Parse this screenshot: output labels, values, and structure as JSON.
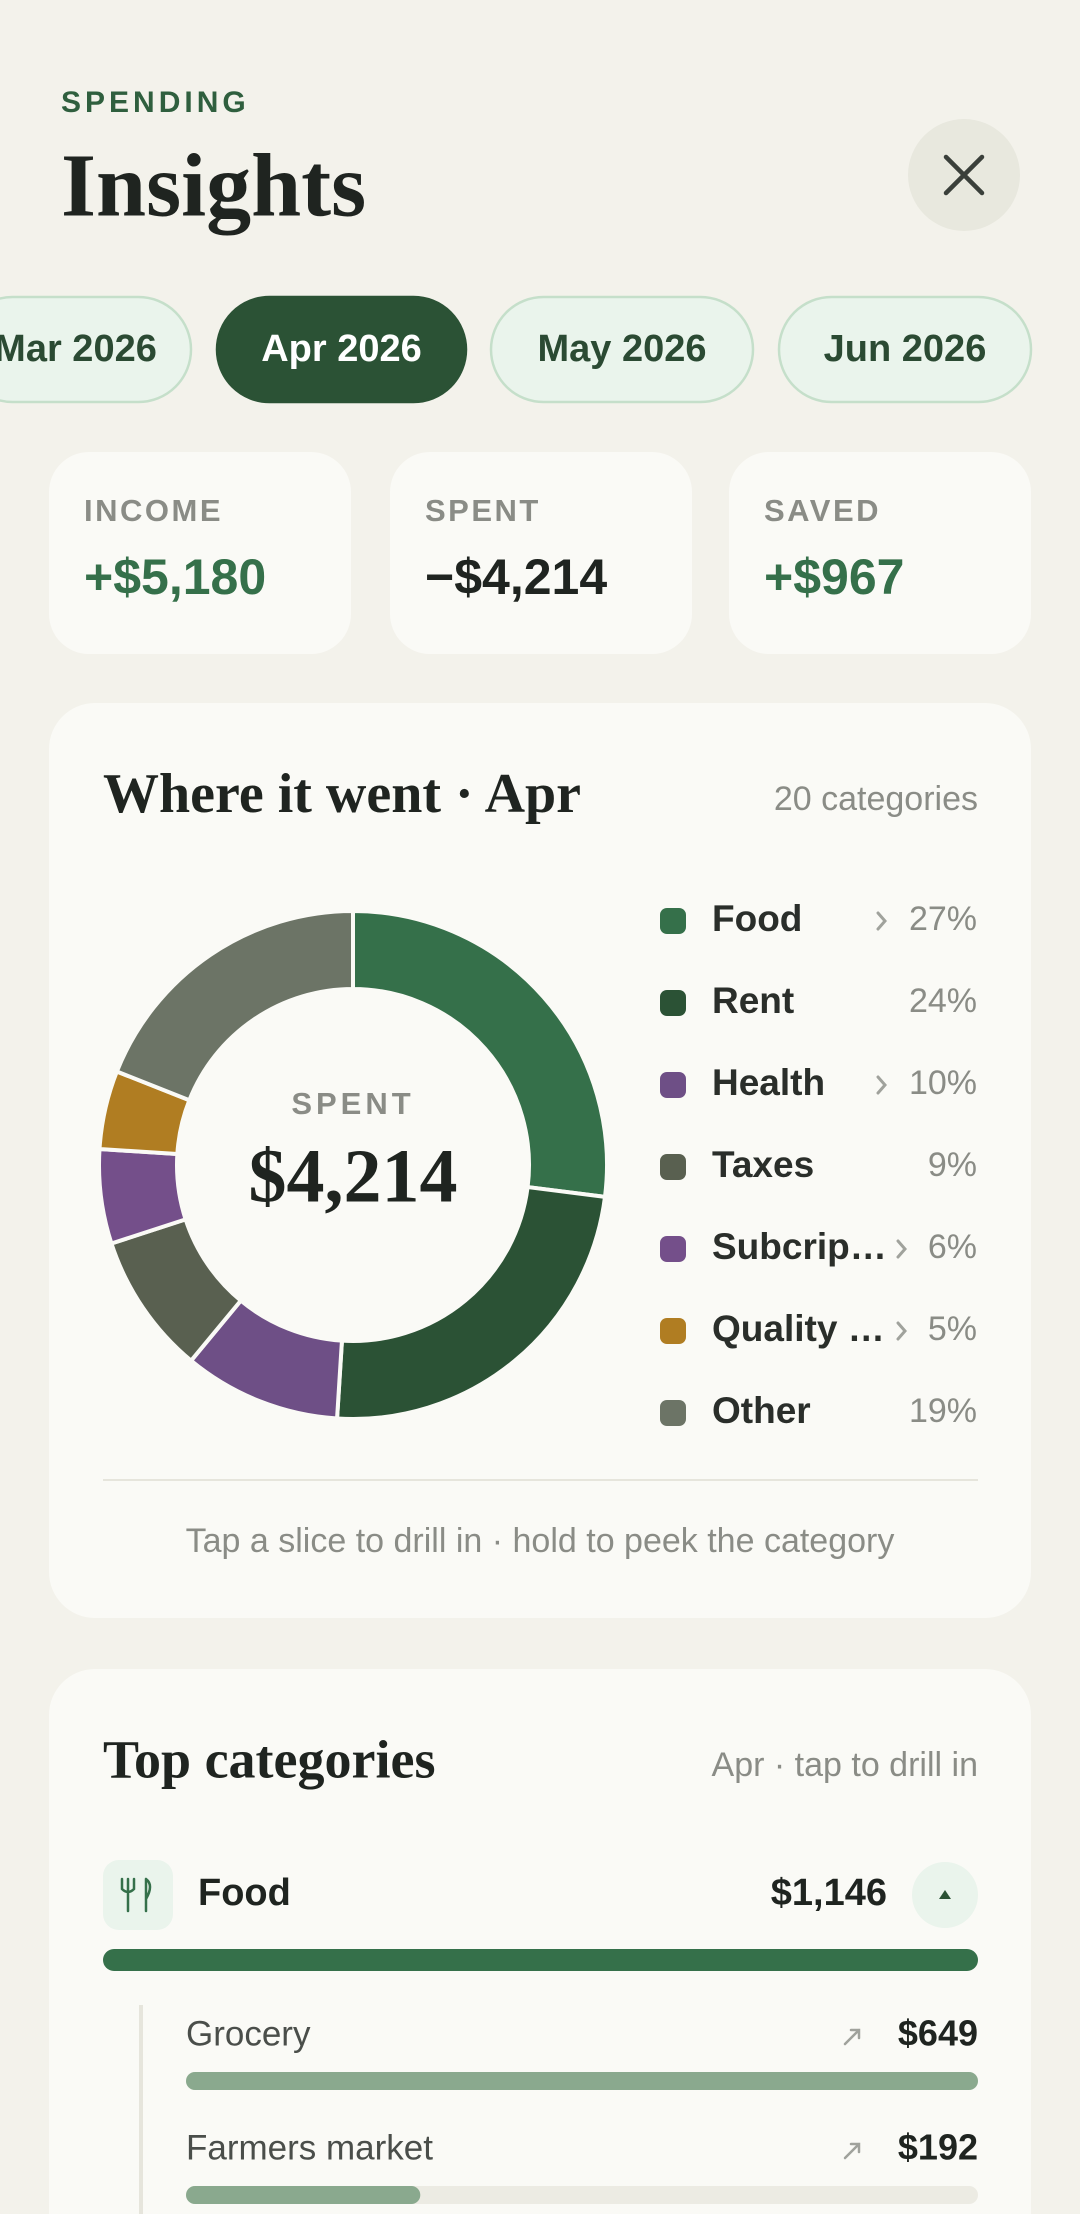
{
  "header": {
    "eyebrow": "SPENDING",
    "title": "Insights"
  },
  "months": [
    {
      "label": "Mar 2026",
      "selected": false
    },
    {
      "label": "Apr 2026",
      "selected": true
    },
    {
      "label": "May 2026",
      "selected": false
    },
    {
      "label": "Jun 2026",
      "selected": false
    }
  ],
  "summary": [
    {
      "label": "INCOME",
      "value": "+$5,180",
      "tone": "positive"
    },
    {
      "label": "SPENT",
      "value": "−$4,214",
      "tone": "neutral"
    },
    {
      "label": "SAVED",
      "value": "+$967",
      "tone": "positive"
    }
  ],
  "breakdown": {
    "title": "Where it went · Apr",
    "meta": "20 categories",
    "center_label": "SPENT",
    "center_value": "$4,214",
    "footer": "Tap a slice to drill in · hold to peek the category"
  },
  "chart_data": {
    "type": "pie",
    "donut": true,
    "categories": [
      "Food",
      "Rent",
      "Health",
      "Taxes",
      "Subcrip…",
      "Quality …",
      "Other"
    ],
    "values": [
      27,
      24,
      10,
      9,
      6,
      5,
      19
    ],
    "value_labels": [
      "27%",
      "24%",
      "10%",
      "9%",
      "6%",
      "5%",
      "19%"
    ],
    "colors": [
      "#35704a",
      "#2b5235",
      "#6e4f86",
      "#596050",
      "#744f8a",
      "#b07d22",
      "#6c7466"
    ],
    "drill": [
      true,
      false,
      true,
      false,
      true,
      true,
      false
    ]
  },
  "top_categories": {
    "title": "Top categories",
    "meta": "Apr · tap to drill in",
    "items": [
      {
        "name": "Food",
        "value": 1146,
        "value_label": "$1,146",
        "children": [
          {
            "name": "Grocery",
            "value": 649,
            "value_label": "$649"
          },
          {
            "name": "Farmers market",
            "value": 192,
            "value_label": "$192"
          }
        ]
      }
    ]
  }
}
